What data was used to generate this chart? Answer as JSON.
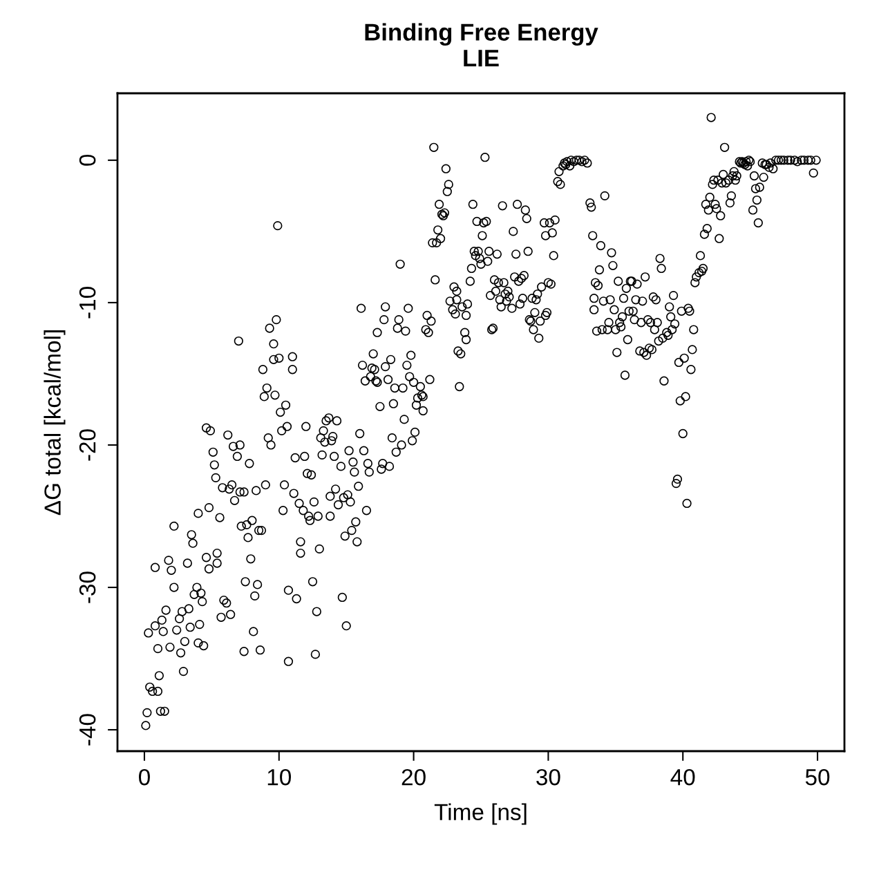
{
  "chart_data": {
    "type": "scatter",
    "title": "Binding Free Energy\nLIE",
    "xlabel": "Time [ns]",
    "ylabel": "ΔG total [kcal/mol]",
    "xlim": [
      -2,
      52
    ],
    "ylim": [
      -41.5,
      4.7
    ],
    "xticks": [
      0,
      10,
      20,
      30,
      40,
      50
    ],
    "yticks": [
      {
        "value": 0,
        "label": "0"
      },
      {
        "value": -10,
        "label": "-10"
      },
      {
        "value": -20,
        "label": "-20"
      },
      {
        "value": -30,
        "label": "-30"
      },
      {
        "value": -40,
        "label": "-40"
      }
    ],
    "grid": false,
    "marker": "circle",
    "series": [
      {
        "color": "#000000",
        "x": [
          0.1,
          0.2,
          0.4,
          0.3,
          0.6,
          0.8,
          0.8,
          1.0,
          1.0,
          1.1,
          1.2,
          1.5,
          1.3,
          1.4,
          1.6,
          1.8,
          1.9,
          2.0,
          2.2,
          2.2,
          2.4,
          2.6,
          2.7,
          2.8,
          2.9,
          3.0,
          3.2,
          3.3,
          3.4,
          3.5,
          3.6,
          3.7,
          3.9,
          4.0,
          4.1,
          4.2,
          4.3,
          4.4,
          4.0,
          4.6,
          4.6,
          4.8,
          4.8,
          4.9,
          5.1,
          5.2,
          5.3,
          5.4,
          5.4,
          5.6,
          5.7,
          5.8,
          5.9,
          6.1,
          6.2,
          6.3,
          6.4,
          6.5,
          6.6,
          6.7,
          6.9,
          7.0,
          7.1,
          7.1,
          7.2,
          7.4,
          7.4,
          7.5,
          7.6,
          7.7,
          7.8,
          7.9,
          8.0,
          8.1,
          8.2,
          8.3,
          8.4,
          8.5,
          8.6,
          8.7,
          8.8,
          8.9,
          9.0,
          9.1,
          9.2,
          9.3,
          9.4,
          9.6,
          9.6,
          9.7,
          9.8,
          9.9,
          10.0,
          10.1,
          10.2,
          10.3,
          10.4,
          10.5,
          10.6,
          10.7,
          10.7,
          11.0,
          11.0,
          11.1,
          11.2,
          11.3,
          11.5,
          11.6,
          11.6,
          11.8,
          11.9,
          12.0,
          12.1,
          12.2,
          12.3,
          12.4,
          12.5,
          12.6,
          12.7,
          12.8,
          12.9,
          13.0,
          13.1,
          13.2,
          13.3,
          13.4,
          13.5,
          13.7,
          13.8,
          13.8,
          13.9,
          14.0,
          14.1,
          14.2,
          14.3,
          14.4,
          14.6,
          14.7,
          14.8,
          14.9,
          15.0,
          15.1,
          15.2,
          15.3,
          15.4,
          15.5,
          15.6,
          15.7,
          15.8,
          15.9,
          16.0,
          16.1,
          16.2,
          16.3,
          16.4,
          16.5,
          16.6,
          16.7,
          16.8,
          16.9,
          17.0,
          17.1,
          17.2,
          17.3,
          17.3,
          17.5,
          17.6,
          17.7,
          17.8,
          17.9,
          17.9,
          18.1,
          18.2,
          18.3,
          18.4,
          18.5,
          18.6,
          18.7,
          18.8,
          18.9,
          19.0,
          19.1,
          19.2,
          19.3,
          19.4,
          19.5,
          19.6,
          19.7,
          19.8,
          19.9,
          20.0,
          20.1,
          20.2,
          20.3,
          20.5,
          20.6,
          20.7,
          20.7,
          20.9,
          21.0,
          21.1,
          21.2,
          21.3,
          21.4,
          21.5,
          21.6,
          21.7,
          21.8,
          21.9,
          22.0,
          22.1,
          22.2,
          22.3,
          22.4,
          22.5,
          22.6,
          22.7,
          22.9,
          23.0,
          23.1,
          23.2,
          23.2,
          23.3,
          23.4,
          23.5,
          23.6,
          23.8,
          23.9,
          23.9,
          24.0,
          24.2,
          24.3,
          24.4,
          24.5,
          24.6,
          24.7,
          24.8,
          24.9,
          25.0,
          25.1,
          25.2,
          25.3,
          25.4,
          25.5,
          25.6,
          25.7,
          25.8,
          25.9,
          26.0,
          26.1,
          26.2,
          26.3,
          26.4,
          26.5,
          26.6,
          26.7,
          26.8,
          26.9,
          27.0,
          27.1,
          27.3,
          27.4,
          27.5,
          27.6,
          27.7,
          27.8,
          27.9,
          28.0,
          28.1,
          28.2,
          28.3,
          28.4,
          28.5,
          28.6,
          28.7,
          28.8,
          28.9,
          29.0,
          29.1,
          29.2,
          29.3,
          29.4,
          29.5,
          29.7,
          29.8,
          29.8,
          29.9,
          30.0,
          30.1,
          30.2,
          30.3,
          30.4,
          30.5,
          30.7,
          30.8,
          30.9,
          31.1,
          31.2,
          31.3,
          31.4,
          31.6,
          31.7,
          31.9,
          32.1,
          32.3,
          32.5,
          32.7,
          32.9,
          33.1,
          33.2,
          33.3,
          33.4,
          33.4,
          33.5,
          33.6,
          33.7,
          33.8,
          33.9,
          34.0,
          34.1,
          34.2,
          34.4,
          34.5,
          34.6,
          34.7,
          34.8,
          34.9,
          35.0,
          35.1,
          35.2,
          35.3,
          35.4,
          35.5,
          35.6,
          35.7,
          35.8,
          35.9,
          36.0,
          36.1,
          36.2,
          36.3,
          36.4,
          36.5,
          36.6,
          36.8,
          36.9,
          37.0,
          37.1,
          37.2,
          37.3,
          37.4,
          37.5,
          37.6,
          37.7,
          37.8,
          37.9,
          38.0,
          38.1,
          38.2,
          38.3,
          38.4,
          38.5,
          38.6,
          38.8,
          38.9,
          39.0,
          39.1,
          39.2,
          39.3,
          39.4,
          39.5,
          39.6,
          39.7,
          39.8,
          39.9,
          40.0,
          40.1,
          40.2,
          40.3,
          40.4,
          40.5,
          40.6,
          40.7,
          40.8,
          40.9,
          41.0,
          41.2,
          41.3,
          41.4,
          41.5,
          41.6,
          41.7,
          41.8,
          41.9,
          42.0,
          42.1,
          42.2,
          42.3,
          42.4,
          42.5,
          42.6,
          42.7,
          42.8,
          42.9,
          43.0,
          43.1,
          43.2,
          43.4,
          43.5,
          43.6,
          43.7,
          43.8,
          43.9,
          44.0,
          44.2,
          44.3,
          44.4,
          44.5,
          44.6,
          44.7,
          44.8,
          44.9,
          45.0,
          45.2,
          45.3,
          45.4,
          45.5,
          45.6,
          45.7,
          45.9,
          46.0,
          46.1,
          46.2,
          46.4,
          46.5,
          46.7,
          46.9,
          47.1,
          47.3,
          47.5,
          47.8,
          48.0,
          48.3,
          48.5,
          48.8,
          49.0,
          49.3,
          49.5,
          49.7,
          49.9
        ],
        "values": [
          -39.7,
          -38.8,
          -37.0,
          -33.2,
          -37.3,
          -32.7,
          -28.6,
          -37.3,
          -34.3,
          -36.2,
          -38.7,
          -38.7,
          -32.3,
          -33.1,
          -31.6,
          -28.1,
          -34.2,
          -28.8,
          -25.7,
          -30.0,
          -33.0,
          -32.2,
          -34.6,
          -31.7,
          -35.9,
          -33.8,
          -28.3,
          -31.5,
          -32.8,
          -26.3,
          -26.9,
          -30.5,
          -30.0,
          -33.9,
          -32.6,
          -30.4,
          -31.0,
          -34.1,
          -24.8,
          -27.9,
          -18.8,
          -28.7,
          -24.4,
          -19.0,
          -20.5,
          -21.4,
          -22.3,
          -27.6,
          -28.3,
          -25.1,
          -32.1,
          -23.0,
          -30.9,
          -31.1,
          -19.3,
          -23.1,
          -31.9,
          -22.8,
          -20.1,
          -23.9,
          -20.8,
          -12.7,
          -23.3,
          -20.0,
          -25.7,
          -23.3,
          -34.5,
          -29.6,
          -25.6,
          -26.5,
          -21.3,
          -28.0,
          -25.3,
          -33.1,
          -30.6,
          -23.2,
          -29.8,
          -26.0,
          -34.4,
          -26.0,
          -14.7,
          -16.6,
          -22.8,
          -16.0,
          -19.5,
          -11.8,
          -20.0,
          -14.0,
          -12.9,
          -16.5,
          -11.2,
          -4.6,
          -13.9,
          -17.7,
          -19.0,
          -24.6,
          -22.8,
          -17.2,
          -18.7,
          -30.2,
          -35.2,
          -14.7,
          -13.8,
          -23.4,
          -20.9,
          -30.8,
          -24.1,
          -27.6,
          -26.8,
          -24.6,
          -20.8,
          -18.7,
          -22.0,
          -25.0,
          -25.3,
          -22.1,
          -29.6,
          -24.0,
          -34.7,
          -31.7,
          -25.0,
          -27.3,
          -19.5,
          -20.7,
          -19.0,
          -19.8,
          -18.3,
          -18.1,
          -25.0,
          -23.6,
          -19.7,
          -19.4,
          -20.8,
          -23.1,
          -18.3,
          -24.2,
          -21.5,
          -30.7,
          -23.7,
          -26.4,
          -32.7,
          -23.5,
          -20.4,
          -24.0,
          -26.0,
          -21.2,
          -21.9,
          -25.4,
          -26.8,
          -22.9,
          -19.2,
          -10.4,
          -14.4,
          -20.4,
          -15.5,
          -24.6,
          -21.3,
          -21.9,
          -15.2,
          -14.6,
          -13.6,
          -14.7,
          -15.5,
          -15.6,
          -12.1,
          -17.3,
          -21.7,
          -21.3,
          -11.2,
          -14.5,
          -10.3,
          -15.4,
          -21.5,
          -14.0,
          -19.5,
          -17.1,
          -16.0,
          -20.5,
          -11.8,
          -11.2,
          -7.3,
          -20.0,
          -16.0,
          -18.2,
          -12.0,
          -14.4,
          -10.4,
          -15.2,
          -13.7,
          -19.7,
          -15.6,
          -19.1,
          -17.2,
          -16.7,
          -15.9,
          -16.5,
          -17.6,
          -16.6,
          -11.9,
          -10.9,
          -12.1,
          -15.4,
          -11.3,
          -5.8,
          0.9,
          -8.4,
          -5.8,
          -4.9,
          -3.1,
          -5.5,
          -3.8,
          -3.9,
          -3.7,
          -0.6,
          -2.2,
          -1.7,
          -9.9,
          -10.5,
          -8.9,
          -10.8,
          -9.2,
          -9.8,
          -13.4,
          -15.9,
          -13.6,
          -10.3,
          -12.1,
          -12.6,
          -10.9,
          -10.1,
          -8.5,
          -7.6,
          -3.1,
          -6.4,
          -6.7,
          -4.3,
          -6.4,
          -6.9,
          -7.3,
          -5.3,
          -4.4,
          0.2,
          -4.3,
          -7.1,
          -6.4,
          -9.5,
          -11.9,
          -11.8,
          -8.4,
          -9.2,
          -6.6,
          -8.6,
          -9.8,
          -10.3,
          -3.2,
          -8.6,
          -9.4,
          -9.9,
          -9.2,
          -9.6,
          -10.4,
          -5.0,
          -8.2,
          -6.6,
          -3.1,
          -8.5,
          -10.1,
          -8.3,
          -9.7,
          -8.1,
          -3.5,
          -4.1,
          -6.4,
          -11.2,
          -11.3,
          -9.7,
          -11.9,
          -10.7,
          -9.8,
          -9.4,
          -12.5,
          -11.3,
          -8.9,
          -4.4,
          -10.9,
          -5.3,
          -10.7,
          -8.6,
          -4.4,
          -8.7,
          -5.1,
          -6.7,
          -4.2,
          -1.5,
          -0.8,
          -1.7,
          -0.4,
          -0.2,
          -0.3,
          -0.1,
          -0.4,
          0.0,
          -0.1,
          0.0,
          0.0,
          -0.1,
          0.0,
          -0.2,
          -3.0,
          -3.3,
          -5.3,
          -9.7,
          -10.5,
          -8.6,
          -12.0,
          -8.8,
          -7.7,
          -6.0,
          -11.9,
          -9.9,
          -2.5,
          -11.9,
          -11.4,
          -9.8,
          -6.5,
          -7.4,
          -10.5,
          -11.9,
          -13.5,
          -8.5,
          -11.4,
          -11.7,
          -11.0,
          -9.7,
          -15.1,
          -9.0,
          -12.6,
          -10.6,
          -8.5,
          -8.5,
          -10.6,
          -11.2,
          -9.8,
          -8.7,
          -13.4,
          -11.4,
          -9.9,
          -13.5,
          -8.2,
          -13.7,
          -11.2,
          -13.2,
          -11.4,
          -13.3,
          -9.6,
          -11.9,
          -9.8,
          -11.4,
          -12.7,
          -6.9,
          -7.6,
          -12.5,
          -15.5,
          -12.1,
          -12.3,
          -10.3,
          -11.0,
          -11.9,
          -9.5,
          -11.5,
          -22.7,
          -22.4,
          -14.2,
          -16.9,
          -10.6,
          -19.2,
          -13.9,
          -16.6,
          -24.1,
          -10.4,
          -10.6,
          -14.7,
          -13.3,
          -11.9,
          -8.6,
          -8.2,
          -7.9,
          -6.7,
          -7.8,
          -7.6,
          -5.2,
          -3.1,
          -4.8,
          -3.5,
          -2.6,
          3.0,
          -1.7,
          -1.4,
          -3.1,
          -3.4,
          -1.4,
          -5.5,
          -3.9,
          -1.6,
          -1.0,
          0.9,
          -1.6,
          -1.4,
          -3.0,
          -2.5,
          -1.1,
          -0.8,
          -1.4,
          -1.1,
          -0.1,
          -0.2,
          -0.1,
          -0.2,
          -0.3,
          -0.1,
          -0.4,
          0.0,
          -0.1,
          -3.5,
          -1.1,
          -2.0,
          -2.8,
          -4.4,
          -1.9,
          -0.2,
          -1.2,
          -0.3,
          -0.3,
          -0.5,
          -0.2,
          -0.6,
          0.0,
          0.0,
          0.0,
          0.0,
          0.0,
          0.0,
          0.0,
          -0.1,
          0.0,
          0.0,
          0.0,
          0.0,
          -0.9,
          0.0
        ]
      }
    ]
  }
}
